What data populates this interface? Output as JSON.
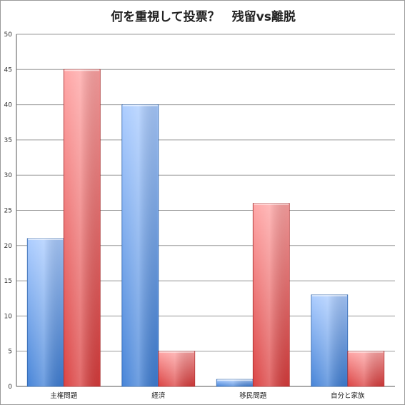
{
  "chart_data": {
    "type": "bar",
    "title": "何を重視して投票？　残留vs離脱",
    "xlabel": "",
    "ylabel": "",
    "categories": [
      "主権問題",
      "経済",
      "移民問題",
      "自分と家族"
    ],
    "series": [
      {
        "values": [
          21,
          40,
          1,
          13
        ],
        "color": "#5b8fd6"
      },
      {
        "values": [
          45,
          5,
          26,
          5
        ],
        "color": "#e05555"
      }
    ],
    "ylim": [
      0,
      50
    ],
    "yticks": [
      0,
      5,
      10,
      15,
      20,
      25,
      30,
      35,
      40,
      45,
      50
    ],
    "grid": true,
    "legend": "none"
  }
}
